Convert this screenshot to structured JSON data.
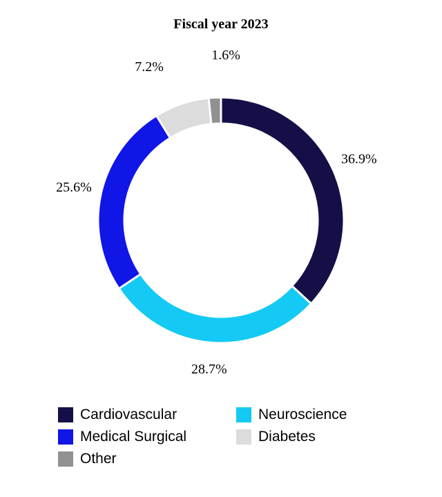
{
  "chart_data": {
    "type": "pie",
    "variant": "donut",
    "title": "Fiscal year 2023",
    "slices": [
      {
        "name": "Cardiovascular",
        "value": 36.9,
        "label": "36.9%",
        "color": "#150F48"
      },
      {
        "name": "Neuroscience",
        "value": 28.7,
        "label": "28.7%",
        "color": "#14CAF4"
      },
      {
        "name": "Medical Surgical",
        "value": 25.6,
        "label": "25.6%",
        "color": "#1016E6"
      },
      {
        "name": "Diabetes",
        "value": 7.2,
        "label": "7.2%",
        "color": "#DCDCDC"
      },
      {
        "name": "Other",
        "value": 1.6,
        "label": "1.6%",
        "color": "#919191"
      }
    ],
    "legend": {
      "placement": "bottom",
      "entries": [
        {
          "name": "Cardiovascular",
          "color": "#150F48"
        },
        {
          "name": "Neuroscience",
          "color": "#14CAF4"
        },
        {
          "name": "Medical Surgical",
          "color": "#1016E6"
        },
        {
          "name": "Diabetes",
          "color": "#DCDCDC"
        },
        {
          "name": "Other",
          "color": "#919191"
        }
      ]
    }
  }
}
